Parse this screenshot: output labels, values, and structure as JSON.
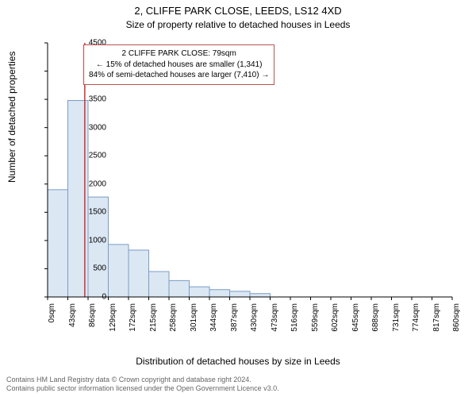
{
  "title_line1": "2, CLIFFE PARK CLOSE, LEEDS, LS12 4XD",
  "title_line2": "Size of property relative to detached houses in Leeds",
  "ylabel": "Number of detached properties",
  "xlabel": "Distribution of detached houses by size in Leeds",
  "chart": {
    "type": "histogram",
    "xlim": [
      0,
      860
    ],
    "ylim": [
      0,
      4500
    ],
    "ytick_step": 500,
    "xtick_step": 43,
    "bar_fill": "#dbe7f3",
    "bar_stroke": "#7a9cc6",
    "background_color": "#ffffff",
    "axis_color": "#000000",
    "tick_color": "#000000",
    "marker_color": "#cc3333",
    "marker_x": 79,
    "bin_width": 43,
    "bins_start": 0,
    "values": [
      1900,
      3480,
      1770,
      930,
      830,
      450,
      290,
      180,
      130,
      100,
      60,
      0,
      0,
      0,
      0,
      0,
      0,
      0,
      0,
      0
    ]
  },
  "callout_box": {
    "lines": [
      "2 CLIFFE PARK CLOSE: 79sqm",
      "← 15% of detached houses are smaller (1,341)",
      "84% of semi-detached houses are larger (7,410) →"
    ],
    "border_color": "#c05050"
  },
  "footer_line1": "Contains HM Land Registry data © Crown copyright and database right 2024.",
  "footer_line2": "Contains public sector information licensed under the Open Government Licence v3.0."
}
